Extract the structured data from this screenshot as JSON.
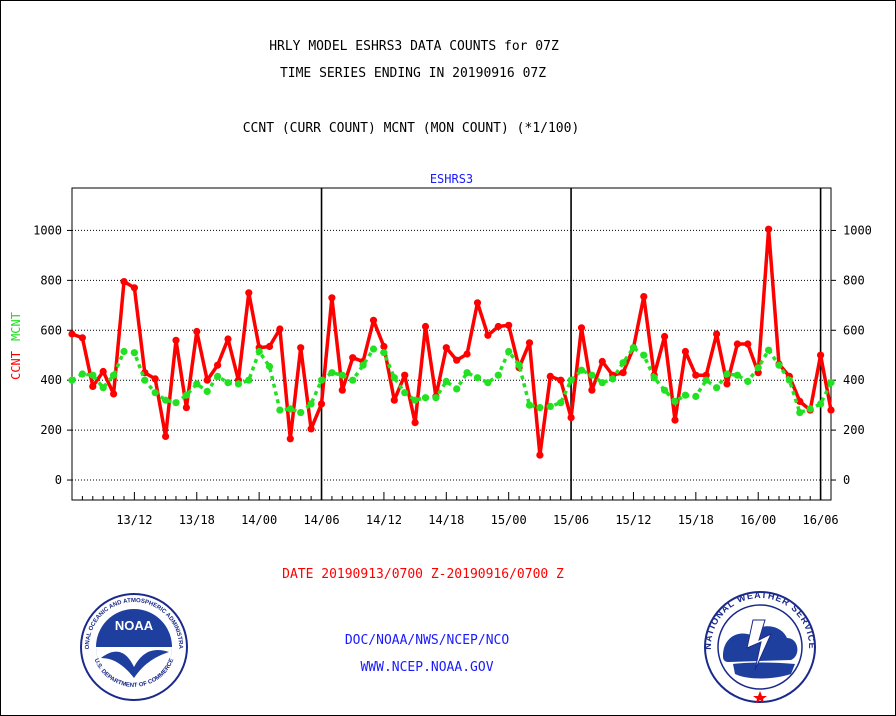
{
  "header": {
    "title_line1": "HRLY MODEL ESHRS3 DATA COUNTS for 07Z",
    "title_line2": "TIME SERIES ENDING IN 20190916 07Z",
    "subtitle": "CCNT (CURR COUNT) MCNT (MON COUNT) (*1/100)"
  },
  "footer": {
    "date_range": "DATE 20190913/0700 Z-20190916/0700 Z",
    "org_path": "DOC/NOAA/NWS/NCEP/NCO",
    "website": "WWW.NCEP.NOAA.GOV"
  },
  "logos": {
    "noaa_badge_text": "NOAA",
    "noaa_ring_top": "NATIONAL OCEANIC AND ATMOSPHERIC ADMINISTRATION",
    "noaa_ring_bottom": "U.S. DEPARTMENT OF COMMERCE",
    "nws_ring_text": "NATIONAL WEATHER SERVICE"
  },
  "colors": {
    "ccnt": "#ff0000",
    "mcnt": "#22e022",
    "series_label": "#1a1aff",
    "grid": "#000000"
  },
  "chart_data": {
    "type": "line",
    "title": "ESHRS3",
    "ylabel_left": [
      "CCNT",
      "MCNT"
    ],
    "ylim": [
      -80,
      1170
    ],
    "yticks": [
      0,
      200,
      400,
      600,
      800,
      1000
    ],
    "xticks": [
      "13/12",
      "13/18",
      "14/00",
      "14/06",
      "14/12",
      "14/18",
      "15/00",
      "15/06",
      "15/12",
      "15/18",
      "16/00",
      "16/06"
    ],
    "x_start": "13/06",
    "x_end": "16/07",
    "x_step_hours": 1,
    "day_boundaries": [
      "14/06",
      "15/06",
      "16/06"
    ],
    "grid": "horizontal dotted",
    "series": [
      {
        "name": "CCNT",
        "style": "solid",
        "values": [
          585,
          570,
          375,
          435,
          345,
          795,
          770,
          430,
          405,
          175,
          560,
          290,
          595,
          400,
          460,
          565,
          400,
          750,
          530,
          535,
          605,
          165,
          530,
          205,
          305,
          730,
          360,
          490,
          475,
          640,
          535,
          320,
          420,
          230,
          615,
          335,
          530,
          480,
          505,
          710,
          580,
          615,
          620,
          450,
          550,
          100,
          415,
          400,
          250,
          610,
          360,
          475,
          420,
          430,
          530,
          735,
          420,
          575,
          240,
          515,
          420,
          420,
          585,
          385,
          545,
          545,
          430,
          1005,
          465,
          415,
          315,
          280,
          500,
          280
        ]
      },
      {
        "name": "MCNT",
        "style": "dotted",
        "values": [
          400,
          425,
          420,
          370,
          420,
          515,
          510,
          400,
          350,
          320,
          310,
          340,
          385,
          355,
          415,
          390,
          385,
          400,
          515,
          455,
          280,
          285,
          270,
          305,
          400,
          430,
          420,
          400,
          460,
          525,
          510,
          410,
          350,
          320,
          330,
          330,
          395,
          365,
          430,
          410,
          390,
          420,
          515,
          460,
          300,
          290,
          295,
          310,
          400,
          440,
          420,
          390,
          405,
          470,
          530,
          500,
          410,
          360,
          315,
          340,
          335,
          400,
          370,
          425,
          420,
          395,
          450,
          520,
          460,
          400,
          270,
          285,
          305,
          390
        ]
      }
    ]
  }
}
